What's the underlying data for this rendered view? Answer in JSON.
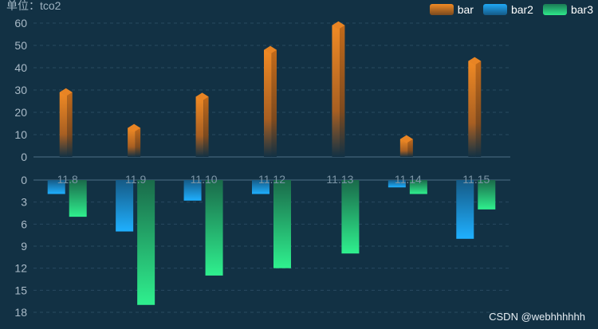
{
  "unit_label": "单位：tco2",
  "watermark": "CSDN @webhhhhhh",
  "legend": [
    {
      "name": "bar",
      "color_top": "#f08a24",
      "color_bottom": "#7a4a1f"
    },
    {
      "name": "bar2",
      "color_top": "#1fa8f5",
      "color_bottom": "#155a86"
    },
    {
      "name": "bar3",
      "color_top": "#2fe88a",
      "color_bottom": "#1a7a55"
    }
  ],
  "chart_data": [
    {
      "type": "bar",
      "categories": [
        "11.8",
        "11.9",
        "11.10",
        "11.12",
        "11.13",
        "11.14",
        "11.15"
      ],
      "series": [
        {
          "name": "bar",
          "values": [
            29,
            13,
            27,
            48,
            59,
            8,
            43
          ]
        }
      ],
      "ylim": [
        0,
        60
      ],
      "yticks": [
        0,
        10,
        20,
        30,
        40,
        50,
        60
      ],
      "grid": true
    },
    {
      "type": "bar",
      "categories": [
        "11.8",
        "11.9",
        "11.10",
        "11.12",
        "11.13",
        "11.14",
        "11.15"
      ],
      "series": [
        {
          "name": "bar2",
          "values": [
            1.9,
            7,
            2.8,
            1.9,
            0,
            1,
            8
          ]
        },
        {
          "name": "bar3",
          "values": [
            5,
            17,
            13,
            12,
            10,
            1.9,
            4
          ]
        }
      ],
      "ylim": [
        0,
        18
      ],
      "yticks": [
        0,
        3,
        6,
        9,
        12,
        15,
        18
      ],
      "inverted": true,
      "grid": true
    }
  ]
}
